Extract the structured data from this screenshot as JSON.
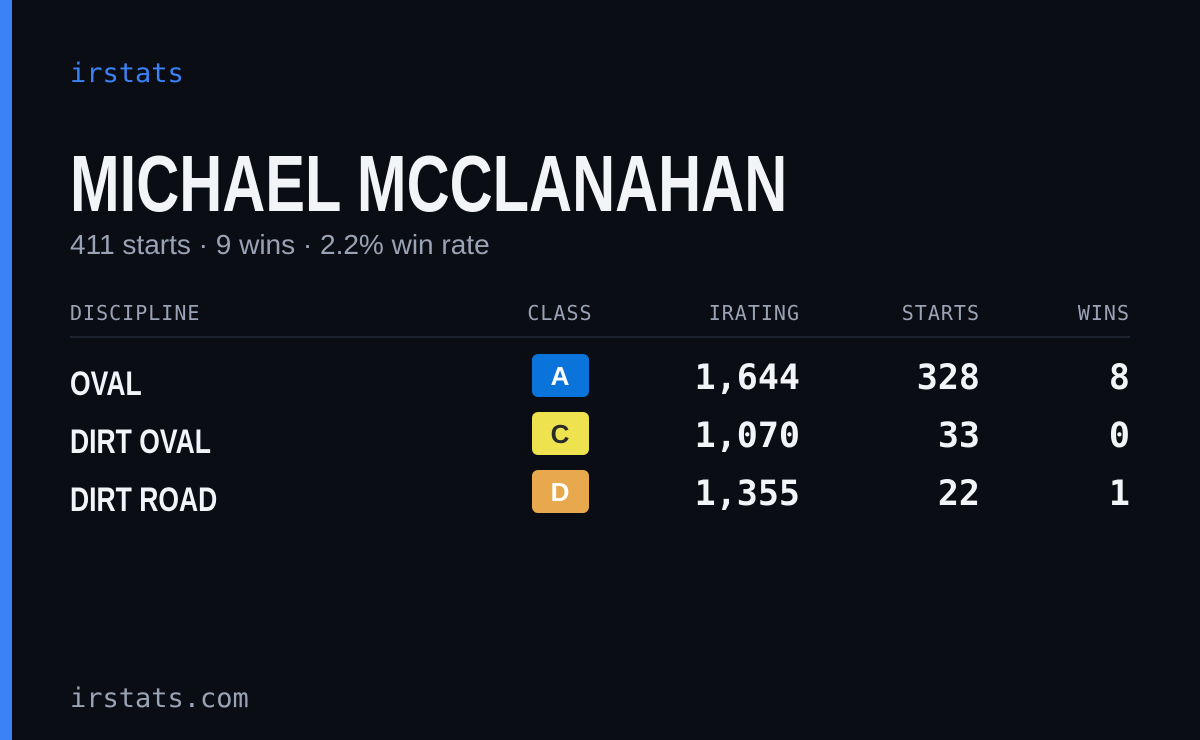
{
  "brand": "irstats",
  "driver": {
    "name": "MICHAEL MCCLANAHAN",
    "summary": "411 starts · 9 wins · 2.2% win rate"
  },
  "table": {
    "headers": [
      "DISCIPLINE",
      "CLASS",
      "IRATING",
      "STARTS",
      "WINS"
    ],
    "rows": [
      {
        "discipline": "OVAL",
        "class": "A",
        "class_color": "#0a74da",
        "class_text_color": "#ffffff",
        "irating": "1,644",
        "starts": "328",
        "wins": "8"
      },
      {
        "discipline": "DIRT OVAL",
        "class": "C",
        "class_color": "#eee24f",
        "class_text_color": "#2a2a2a",
        "irating": "1,070",
        "starts": "33",
        "wins": "0"
      },
      {
        "discipline": "DIRT ROAD",
        "class": "D",
        "class_color": "#e8a94e",
        "class_text_color": "#ffffff",
        "irating": "1,355",
        "starts": "22",
        "wins": "1"
      }
    ]
  },
  "footer": "irstats.com"
}
